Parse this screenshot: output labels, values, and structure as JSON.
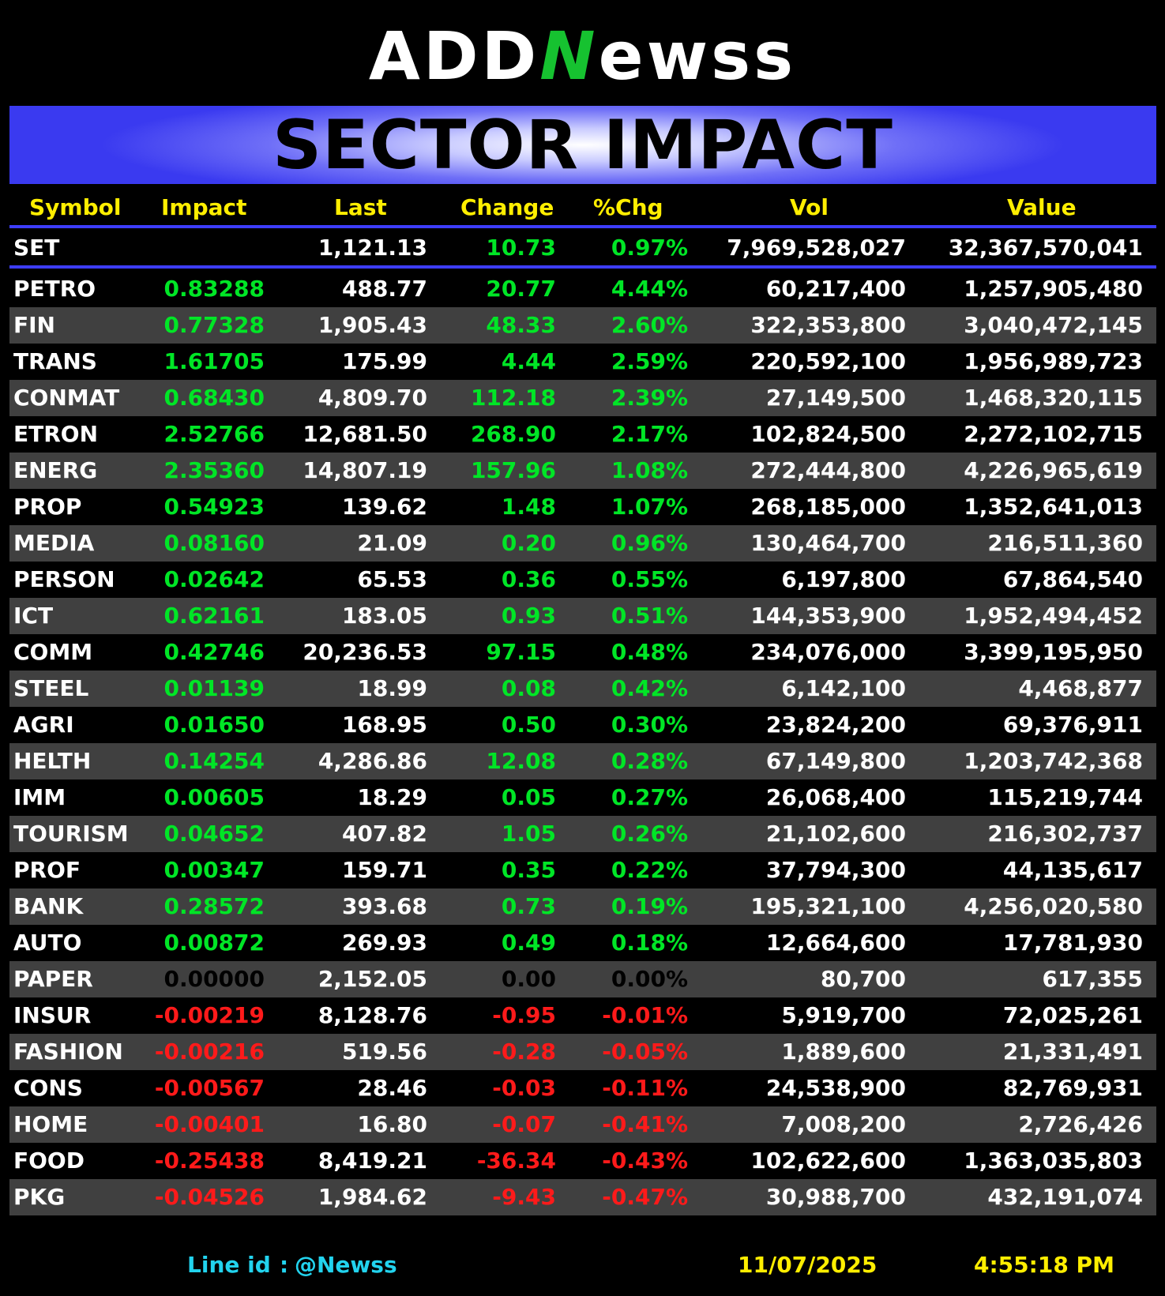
{
  "brand": {
    "logo_pre": "ADD",
    "logo_n": "N",
    "logo_post": "ewss"
  },
  "title": "SECTOR IMPACT",
  "columns": [
    "Symbol",
    "Impact",
    "Last",
    "Change",
    "%Chg",
    "Vol",
    "Value"
  ],
  "index_row": {
    "symbol": "SET",
    "impact": "",
    "last": "1,121.13",
    "change": "10.73",
    "pct": "0.97%",
    "vol": "7,969,528,027",
    "value": "32,367,570,041"
  },
  "colors": {
    "positive": "#00e626",
    "negative": "#ff1a1a",
    "neutral": "#000000",
    "header": "#ffee00",
    "divider": "#3d3dff",
    "footer_cyan": "#22d3ee"
  },
  "rows": [
    {
      "symbol": "PETRO",
      "impact": "0.83288",
      "last": "488.77",
      "change": "20.77",
      "pct": "4.44%",
      "vol": "60,217,400",
      "value": "1,257,905,480",
      "dir": "up"
    },
    {
      "symbol": "FIN",
      "impact": "0.77328",
      "last": "1,905.43",
      "change": "48.33",
      "pct": "2.60%",
      "vol": "322,353,800",
      "value": "3,040,472,145",
      "dir": "up"
    },
    {
      "symbol": "TRANS",
      "impact": "1.61705",
      "last": "175.99",
      "change": "4.44",
      "pct": "2.59%",
      "vol": "220,592,100",
      "value": "1,956,989,723",
      "dir": "up"
    },
    {
      "symbol": "CONMAT",
      "impact": "0.68430",
      "last": "4,809.70",
      "change": "112.18",
      "pct": "2.39%",
      "vol": "27,149,500",
      "value": "1,468,320,115",
      "dir": "up"
    },
    {
      "symbol": "ETRON",
      "impact": "2.52766",
      "last": "12,681.50",
      "change": "268.90",
      "pct": "2.17%",
      "vol": "102,824,500",
      "value": "2,272,102,715",
      "dir": "up"
    },
    {
      "symbol": "ENERG",
      "impact": "2.35360",
      "last": "14,807.19",
      "change": "157.96",
      "pct": "1.08%",
      "vol": "272,444,800",
      "value": "4,226,965,619",
      "dir": "up"
    },
    {
      "symbol": "PROP",
      "impact": "0.54923",
      "last": "139.62",
      "change": "1.48",
      "pct": "1.07%",
      "vol": "268,185,000",
      "value": "1,352,641,013",
      "dir": "up"
    },
    {
      "symbol": "MEDIA",
      "impact": "0.08160",
      "last": "21.09",
      "change": "0.20",
      "pct": "0.96%",
      "vol": "130,464,700",
      "value": "216,511,360",
      "dir": "up"
    },
    {
      "symbol": "PERSON",
      "impact": "0.02642",
      "last": "65.53",
      "change": "0.36",
      "pct": "0.55%",
      "vol": "6,197,800",
      "value": "67,864,540",
      "dir": "up"
    },
    {
      "symbol": "ICT",
      "impact": "0.62161",
      "last": "183.05",
      "change": "0.93",
      "pct": "0.51%",
      "vol": "144,353,900",
      "value": "1,952,494,452",
      "dir": "up"
    },
    {
      "symbol": "COMM",
      "impact": "0.42746",
      "last": "20,236.53",
      "change": "97.15",
      "pct": "0.48%",
      "vol": "234,076,000",
      "value": "3,399,195,950",
      "dir": "up"
    },
    {
      "symbol": "STEEL",
      "impact": "0.01139",
      "last": "18.99",
      "change": "0.08",
      "pct": "0.42%",
      "vol": "6,142,100",
      "value": "4,468,877",
      "dir": "up"
    },
    {
      "symbol": "AGRI",
      "impact": "0.01650",
      "last": "168.95",
      "change": "0.50",
      "pct": "0.30%",
      "vol": "23,824,200",
      "value": "69,376,911",
      "dir": "up"
    },
    {
      "symbol": "HELTH",
      "impact": "0.14254",
      "last": "4,286.86",
      "change": "12.08",
      "pct": "0.28%",
      "vol": "67,149,800",
      "value": "1,203,742,368",
      "dir": "up"
    },
    {
      "symbol": "IMM",
      "impact": "0.00605",
      "last": "18.29",
      "change": "0.05",
      "pct": "0.27%",
      "vol": "26,068,400",
      "value": "115,219,744",
      "dir": "up"
    },
    {
      "symbol": "TOURISM",
      "impact": "0.04652",
      "last": "407.82",
      "change": "1.05",
      "pct": "0.26%",
      "vol": "21,102,600",
      "value": "216,302,737",
      "dir": "up"
    },
    {
      "symbol": "PROF",
      "impact": "0.00347",
      "last": "159.71",
      "change": "0.35",
      "pct": "0.22%",
      "vol": "37,794,300",
      "value": "44,135,617",
      "dir": "up"
    },
    {
      "symbol": "BANK",
      "impact": "0.28572",
      "last": "393.68",
      "change": "0.73",
      "pct": "0.19%",
      "vol": "195,321,100",
      "value": "4,256,020,580",
      "dir": "up"
    },
    {
      "symbol": "AUTO",
      "impact": "0.00872",
      "last": "269.93",
      "change": "0.49",
      "pct": "0.18%",
      "vol": "12,664,600",
      "value": "17,781,930",
      "dir": "up"
    },
    {
      "symbol": "PAPER",
      "impact": "0.00000",
      "last": "2,152.05",
      "change": "0.00",
      "pct": "0.00%",
      "vol": "80,700",
      "value": "617,355",
      "dir": "flat"
    },
    {
      "symbol": "INSUR",
      "impact": "-0.00219",
      "last": "8,128.76",
      "change": "-0.95",
      "pct": "-0.01%",
      "vol": "5,919,700",
      "value": "72,025,261",
      "dir": "down"
    },
    {
      "symbol": "FASHION",
      "impact": "-0.00216",
      "last": "519.56",
      "change": "-0.28",
      "pct": "-0.05%",
      "vol": "1,889,600",
      "value": "21,331,491",
      "dir": "down"
    },
    {
      "symbol": "CONS",
      "impact": "-0.00567",
      "last": "28.46",
      "change": "-0.03",
      "pct": "-0.11%",
      "vol": "24,538,900",
      "value": "82,769,931",
      "dir": "down"
    },
    {
      "symbol": "HOME",
      "impact": "-0.00401",
      "last": "16.80",
      "change": "-0.07",
      "pct": "-0.41%",
      "vol": "7,008,200",
      "value": "2,726,426",
      "dir": "down"
    },
    {
      "symbol": "FOOD",
      "impact": "-0.25438",
      "last": "8,419.21",
      "change": "-36.34",
      "pct": "-0.43%",
      "vol": "102,622,600",
      "value": "1,363,035,803",
      "dir": "down"
    },
    {
      "symbol": "PKG",
      "impact": "-0.04526",
      "last": "1,984.62",
      "change": "-9.43",
      "pct": "-0.47%",
      "vol": "30,988,700",
      "value": "432,191,074",
      "dir": "down"
    }
  ],
  "footer": {
    "line_label": "Line id",
    "line_sep": ":",
    "line_handle": "@Newss",
    "date": "11/07/2025",
    "time": "4:55:18 PM"
  }
}
